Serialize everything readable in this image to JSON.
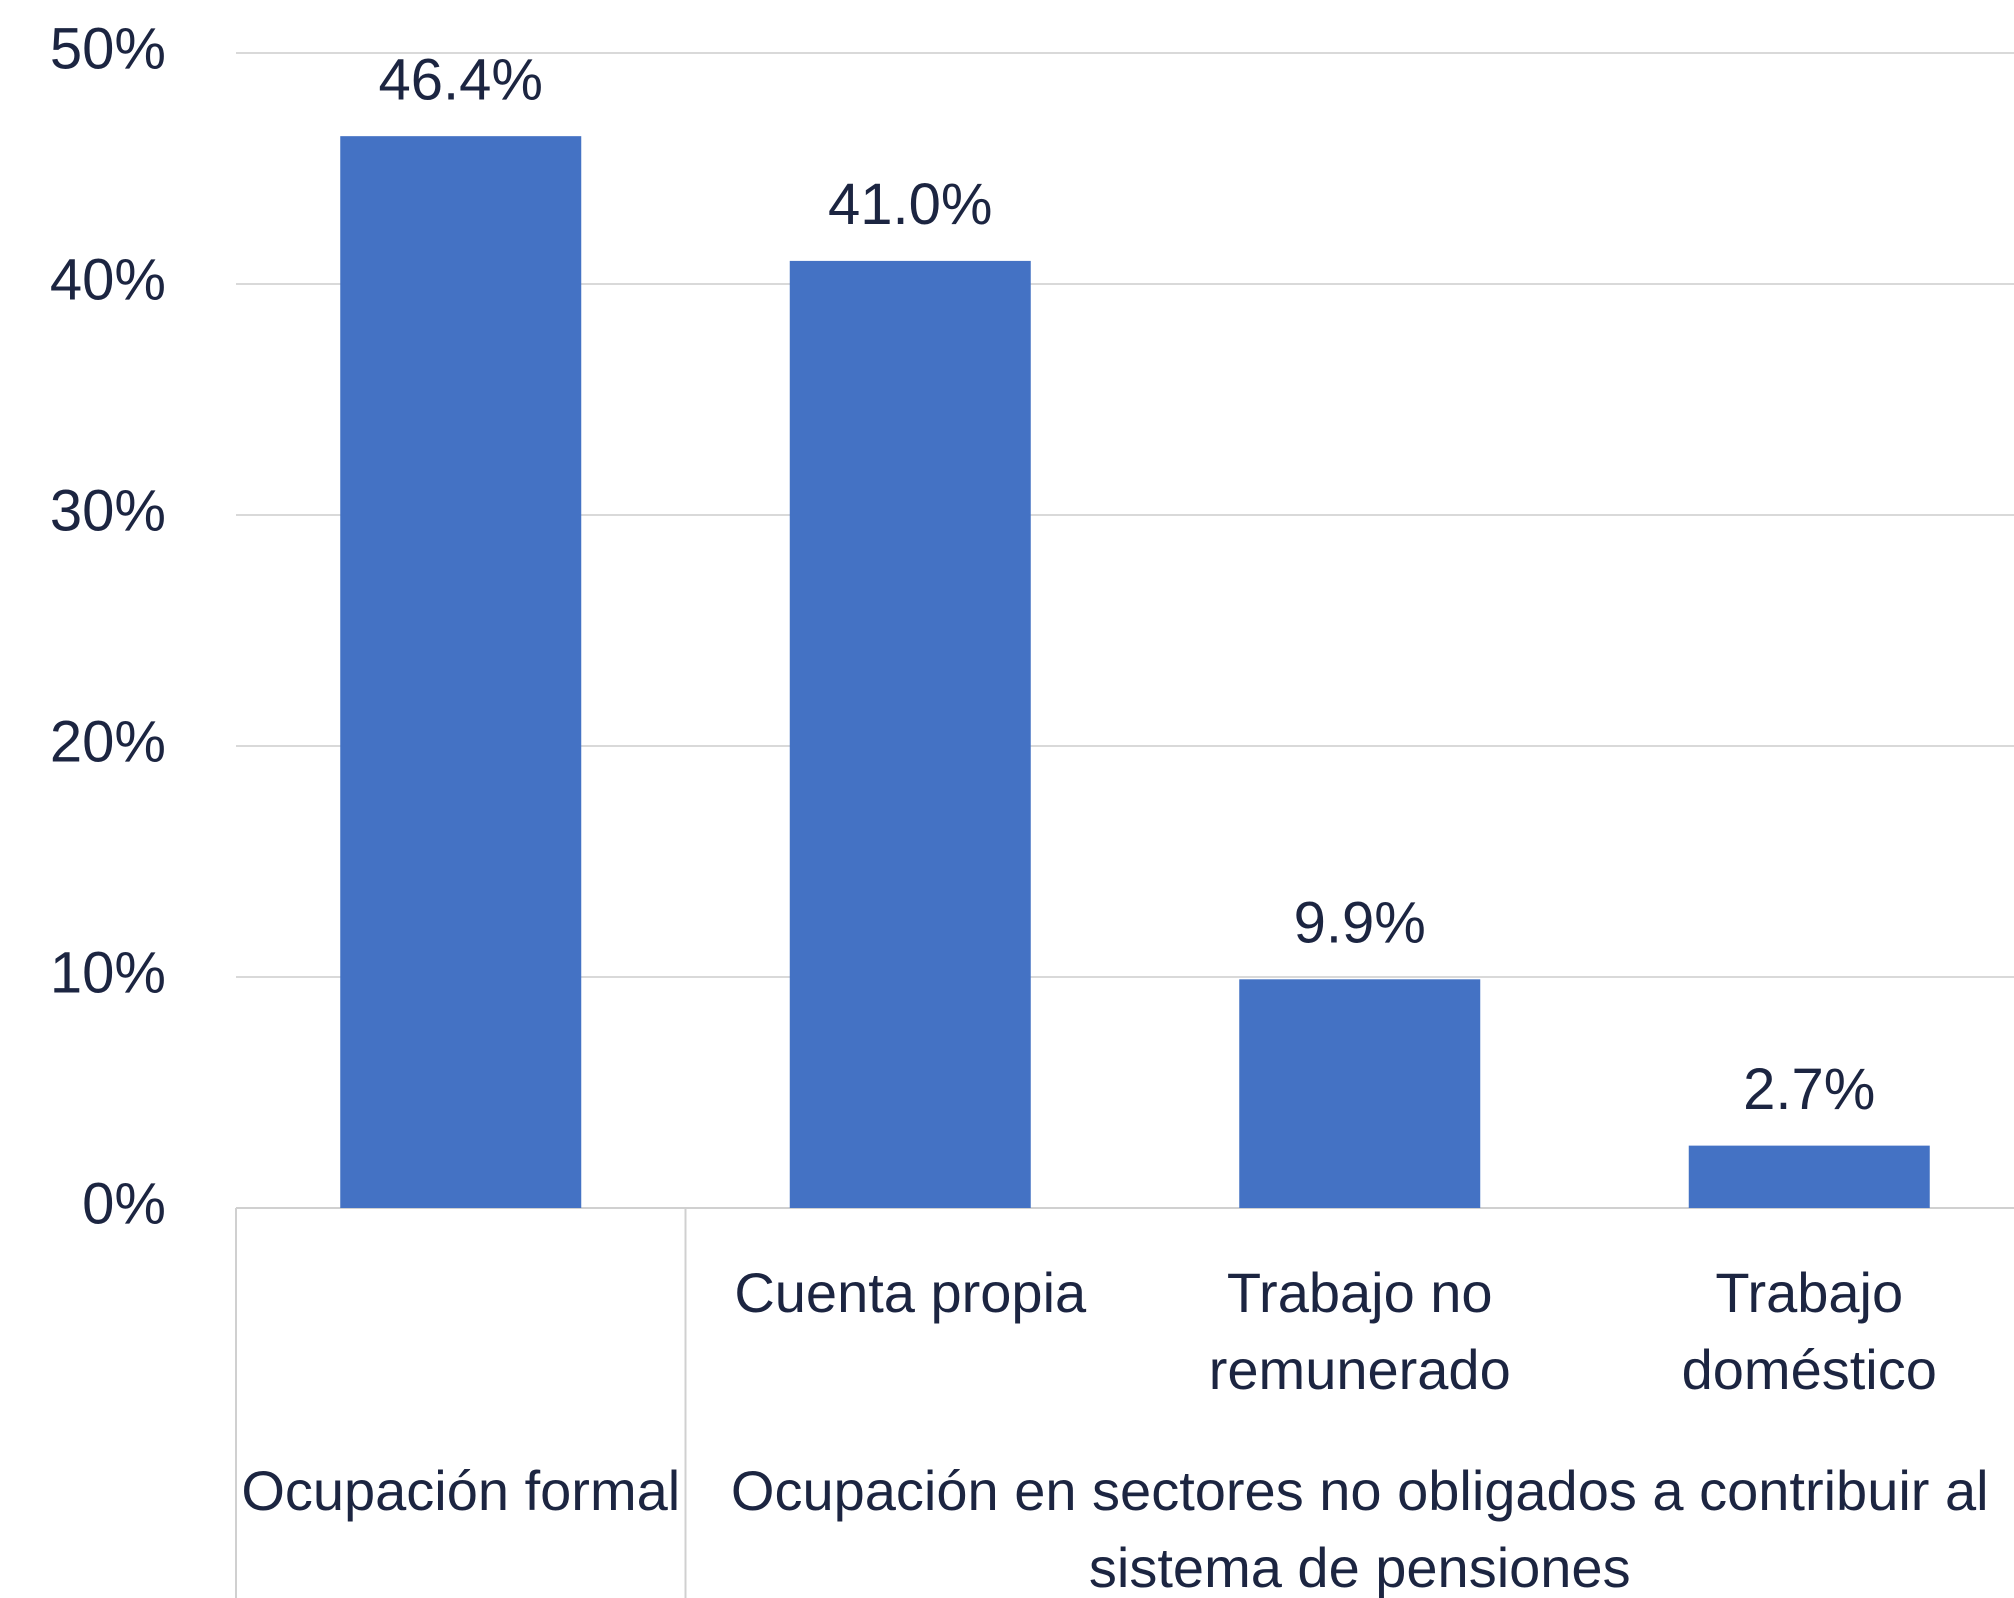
{
  "chart_data": {
    "type": "bar",
    "categories": [
      null,
      "Cuenta propia",
      "Trabajo no remunerado",
      "Trabajo doméstico"
    ],
    "groups": [
      {
        "name": "Ocupación formal",
        "count": 1
      },
      {
        "name": "Ocupación en sectores no obligados a contribuir al sistema de pensiones",
        "count": 3
      }
    ],
    "values": [
      46.4,
      41.0,
      9.9,
      2.7
    ],
    "value_labels": [
      "46.4%",
      "41.0%",
      "9.9%",
      "2.7%"
    ],
    "color": "#4472c4",
    "ylim": [
      0,
      50
    ],
    "yticks": [
      {
        "value": 0,
        "label": "0%"
      },
      {
        "value": 10,
        "label": "10%"
      },
      {
        "value": 20,
        "label": "20%"
      },
      {
        "value": 30,
        "label": "30%"
      },
      {
        "value": 40,
        "label": "40%"
      },
      {
        "value": 50,
        "label": "50%"
      }
    ],
    "grid": true
  }
}
